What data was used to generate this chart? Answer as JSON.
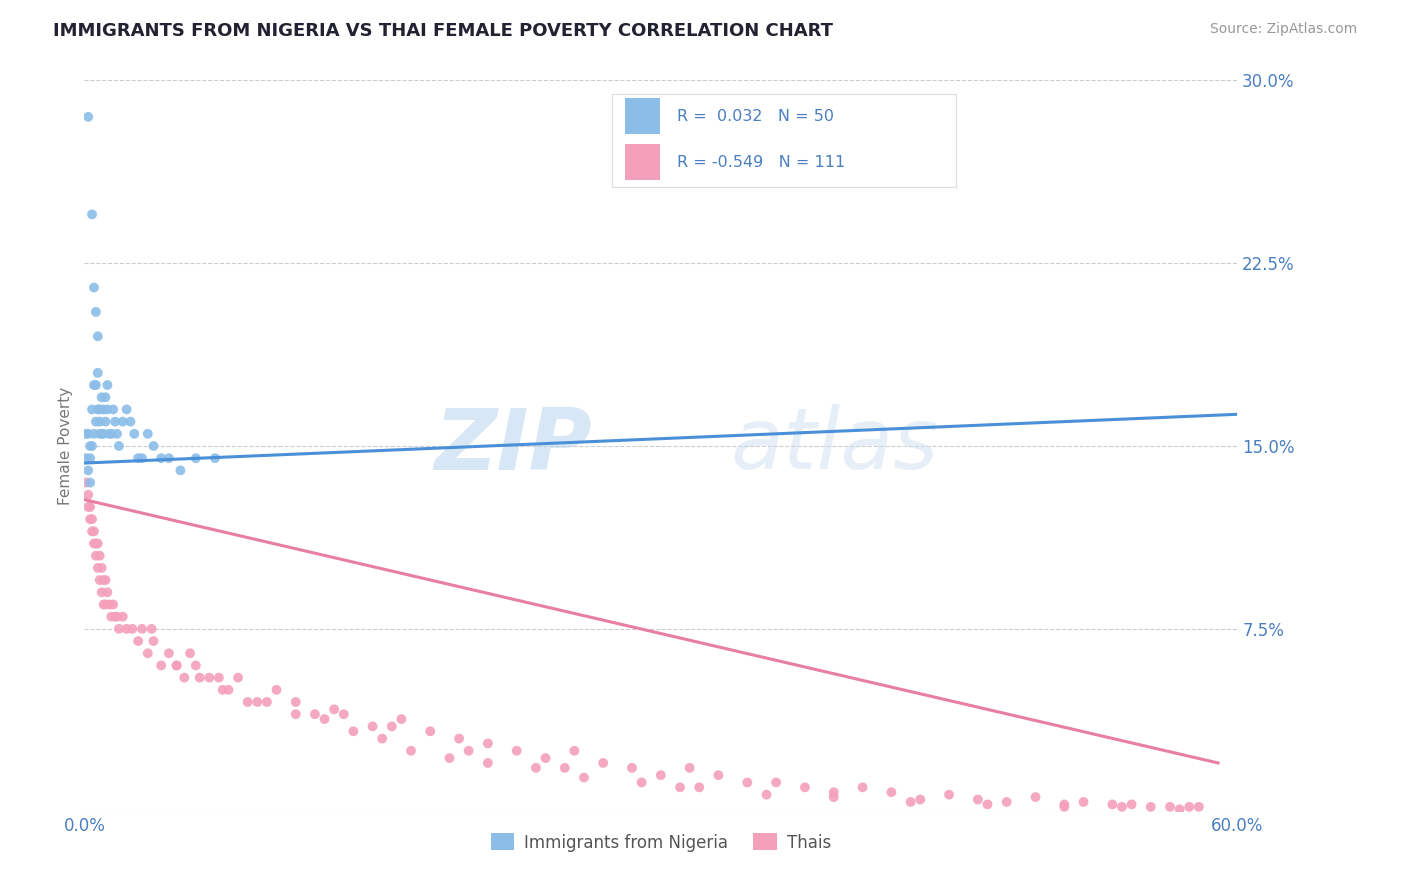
{
  "title": "IMMIGRANTS FROM NIGERIA VS THAI FEMALE POVERTY CORRELATION CHART",
  "source": "Source: ZipAtlas.com",
  "ylabel": "Female Poverty",
  "xlim": [
    0.0,
    0.6
  ],
  "ylim": [
    0.0,
    0.3
  ],
  "ytick_vals": [
    0.0,
    0.075,
    0.15,
    0.225,
    0.3
  ],
  "ytick_labels": [
    "",
    "7.5%",
    "15.0%",
    "22.5%",
    "30.0%"
  ],
  "xtick_vals": [
    0.0,
    0.6
  ],
  "xtick_labels": [
    "0.0%",
    "60.0%"
  ],
  "color_blue": "#8BBDE8",
  "color_pink": "#F4A0BB",
  "color_blue_line": "#4A90D9",
  "color_pink_line": "#E87EA0",
  "color_text_blue": "#4A7FC1",
  "color_grid": "#cccccc",
  "background_color": "#ffffff",
  "watermark_color": "#ddeeff",
  "nigeria_x": [
    0.001,
    0.001,
    0.002,
    0.002,
    0.002,
    0.003,
    0.003,
    0.003,
    0.004,
    0.004,
    0.004,
    0.005,
    0.005,
    0.005,
    0.006,
    0.006,
    0.006,
    0.007,
    0.007,
    0.007,
    0.008,
    0.008,
    0.008,
    0.009,
    0.009,
    0.01,
    0.01,
    0.011,
    0.011,
    0.012,
    0.012,
    0.013,
    0.014,
    0.015,
    0.016,
    0.017,
    0.018,
    0.02,
    0.022,
    0.024,
    0.026,
    0.028,
    0.03,
    0.033,
    0.036,
    0.04,
    0.044,
    0.05,
    0.058,
    0.068
  ],
  "nigeria_y": [
    0.145,
    0.155,
    0.285,
    0.155,
    0.14,
    0.135,
    0.145,
    0.15,
    0.245,
    0.15,
    0.165,
    0.215,
    0.175,
    0.155,
    0.205,
    0.175,
    0.16,
    0.195,
    0.18,
    0.165,
    0.165,
    0.155,
    0.16,
    0.17,
    0.155,
    0.165,
    0.155,
    0.17,
    0.16,
    0.165,
    0.175,
    0.155,
    0.155,
    0.165,
    0.16,
    0.155,
    0.15,
    0.16,
    0.165,
    0.16,
    0.155,
    0.145,
    0.145,
    0.155,
    0.15,
    0.145,
    0.145,
    0.14,
    0.145,
    0.145
  ],
  "thai_x": [
    0.001,
    0.002,
    0.002,
    0.003,
    0.003,
    0.004,
    0.004,
    0.005,
    0.005,
    0.006,
    0.006,
    0.007,
    0.007,
    0.008,
    0.008,
    0.009,
    0.009,
    0.01,
    0.01,
    0.011,
    0.011,
    0.012,
    0.013,
    0.014,
    0.015,
    0.016,
    0.017,
    0.018,
    0.02,
    0.022,
    0.025,
    0.028,
    0.03,
    0.033,
    0.036,
    0.04,
    0.044,
    0.048,
    0.052,
    0.058,
    0.065,
    0.072,
    0.08,
    0.09,
    0.1,
    0.11,
    0.12,
    0.135,
    0.15,
    0.165,
    0.18,
    0.195,
    0.21,
    0.225,
    0.24,
    0.255,
    0.27,
    0.285,
    0.3,
    0.315,
    0.33,
    0.345,
    0.36,
    0.375,
    0.39,
    0.405,
    0.42,
    0.435,
    0.45,
    0.465,
    0.48,
    0.495,
    0.51,
    0.52,
    0.535,
    0.545,
    0.555,
    0.565,
    0.575,
    0.58,
    0.048,
    0.06,
    0.075,
    0.085,
    0.095,
    0.11,
    0.125,
    0.14,
    0.155,
    0.17,
    0.19,
    0.21,
    0.235,
    0.26,
    0.29,
    0.32,
    0.355,
    0.39,
    0.43,
    0.47,
    0.51,
    0.54,
    0.57,
    0.035,
    0.055,
    0.07,
    0.13,
    0.16,
    0.2,
    0.25,
    0.31
  ],
  "thai_y": [
    0.135,
    0.13,
    0.125,
    0.125,
    0.12,
    0.12,
    0.115,
    0.115,
    0.11,
    0.11,
    0.105,
    0.11,
    0.1,
    0.105,
    0.095,
    0.1,
    0.09,
    0.095,
    0.085,
    0.095,
    0.085,
    0.09,
    0.085,
    0.08,
    0.085,
    0.08,
    0.08,
    0.075,
    0.08,
    0.075,
    0.075,
    0.07,
    0.075,
    0.065,
    0.07,
    0.06,
    0.065,
    0.06,
    0.055,
    0.06,
    0.055,
    0.05,
    0.055,
    0.045,
    0.05,
    0.045,
    0.04,
    0.04,
    0.035,
    0.038,
    0.033,
    0.03,
    0.028,
    0.025,
    0.022,
    0.025,
    0.02,
    0.018,
    0.015,
    0.018,
    0.015,
    0.012,
    0.012,
    0.01,
    0.008,
    0.01,
    0.008,
    0.005,
    0.007,
    0.005,
    0.004,
    0.006,
    0.003,
    0.004,
    0.003,
    0.003,
    0.002,
    0.002,
    0.002,
    0.002,
    0.06,
    0.055,
    0.05,
    0.045,
    0.045,
    0.04,
    0.038,
    0.033,
    0.03,
    0.025,
    0.022,
    0.02,
    0.018,
    0.014,
    0.012,
    0.01,
    0.007,
    0.006,
    0.004,
    0.003,
    0.002,
    0.002,
    0.001,
    0.075,
    0.065,
    0.055,
    0.042,
    0.035,
    0.025,
    0.018,
    0.01
  ],
  "nigeria_line_x": [
    0.0,
    0.6
  ],
  "nigeria_line_y": [
    0.143,
    0.163
  ],
  "thai_line_x": [
    0.0,
    0.59
  ],
  "thai_line_y": [
    0.128,
    0.02
  ]
}
